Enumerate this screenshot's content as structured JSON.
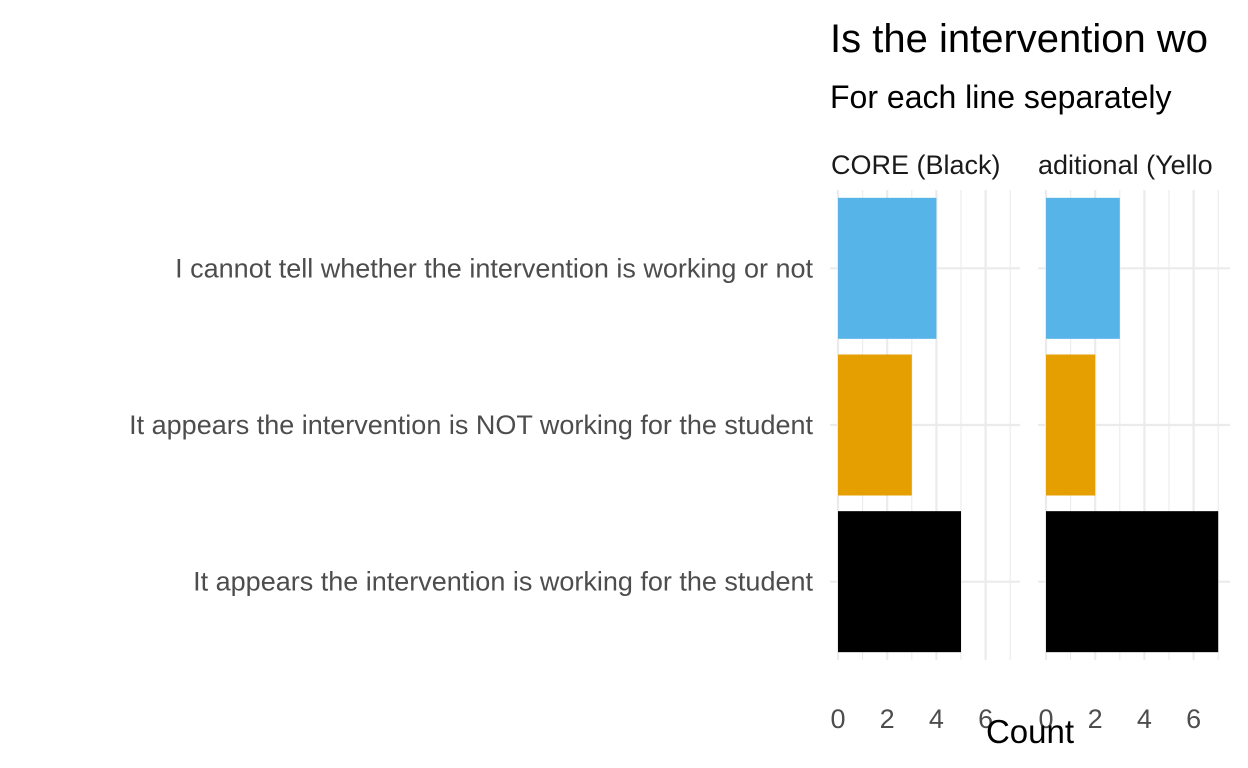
{
  "chart_data": {
    "type": "bar",
    "orientation": "horizontal",
    "title": "Is the intervention wo",
    "subtitle": "For each line separately",
    "xlabel": "Count",
    "ylabel": "",
    "xlim": [
      0,
      7.2
    ],
    "x_ticks": [
      0,
      2,
      4,
      6
    ],
    "grid": true,
    "categories": [
      "I cannot tell whether the intervention is working or not",
      "It appears the intervention is NOT working for the student",
      "It appears the intervention is working for the student"
    ],
    "colors": [
      "#56B4E9",
      "#E69F00",
      "#000000"
    ],
    "facets": [
      {
        "label": "CORE (Black)",
        "values": [
          4,
          3,
          5
        ]
      },
      {
        "label": "aditional (Yello",
        "values": [
          3,
          2,
          7
        ]
      }
    ]
  }
}
